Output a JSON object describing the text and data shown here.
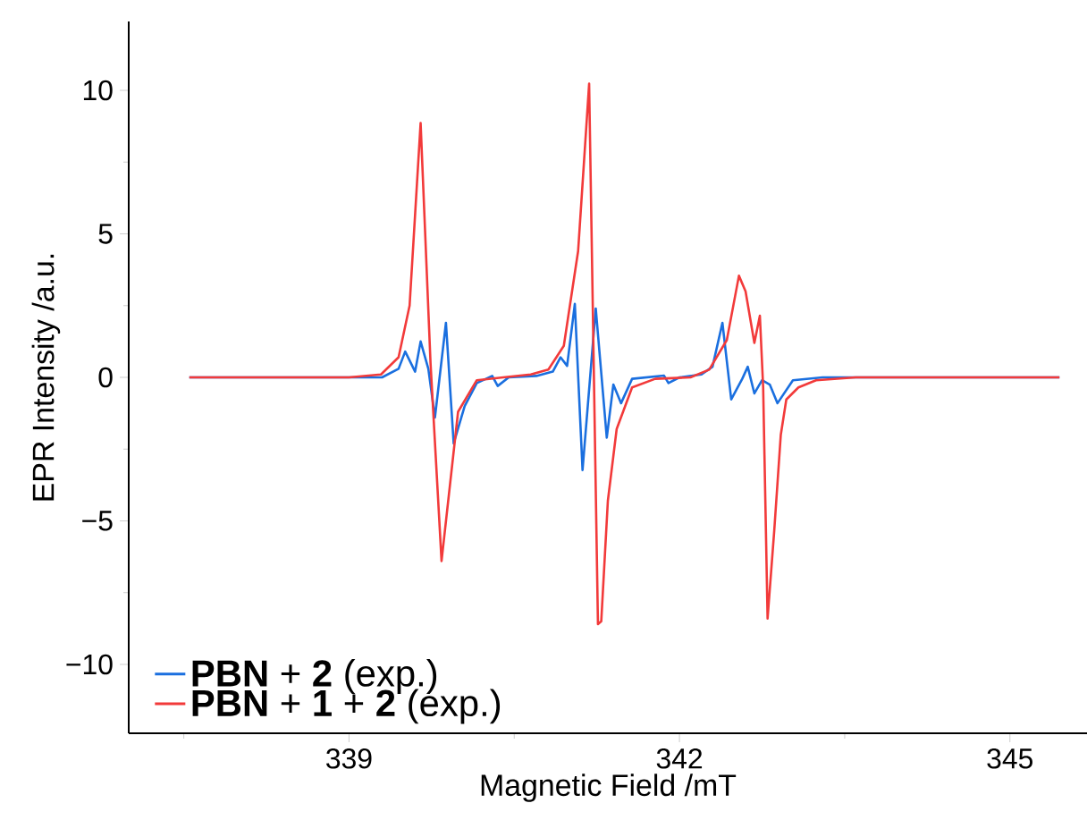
{
  "chart_data": {
    "type": "line",
    "xlabel": "Magnetic Field /mT",
    "ylabel": "EPR Intensity /a.u.",
    "xlim": [
      337.0,
      345.7
    ],
    "ylim": [
      -12.4,
      12.4
    ],
    "xticks": [
      {
        "value": 337.5,
        "label": null
      },
      339,
      {
        "value": 340.5,
        "label": null
      },
      342,
      {
        "value": 343.5,
        "label": null
      },
      345
    ],
    "yticks": [
      {
        "value": -10,
        "label": "−10"
      },
      {
        "value": -7.5,
        "label": null
      },
      {
        "value": -5,
        "label": "−5"
      },
      {
        "value": -2.5,
        "label": null
      },
      0,
      {
        "value": 2.5,
        "label": null
      },
      5,
      {
        "value": 7.5,
        "label": null
      },
      10
    ],
    "legend": "bottom left",
    "grid": false,
    "series": [
      {
        "name": "**PBN** + **2** (exp.)",
        "color": "#1a6fdf",
        "x": [
          337.55,
          338.5,
          339.3,
          339.45,
          339.51,
          339.6,
          339.65,
          339.72,
          339.78,
          339.88,
          339.95,
          340.05,
          340.16,
          340.3,
          340.35,
          340.45,
          340.7,
          340.85,
          340.92,
          340.98,
          341.05,
          341.12,
          341.24,
          341.34,
          341.4,
          341.47,
          341.57,
          341.86,
          341.9,
          342.0,
          342.2,
          342.3,
          342.39,
          342.47,
          342.57,
          342.62,
          342.68,
          342.75,
          342.82,
          342.89,
          343.03,
          343.3,
          344.5,
          345.45
        ],
        "values": [
          0,
          0,
          0,
          0.3,
          0.9,
          0.2,
          1.25,
          0.3,
          -1.4,
          1.9,
          -2.3,
          -1.0,
          -0.2,
          0.05,
          -0.3,
          0,
          0.05,
          0.2,
          0.7,
          0.4,
          2.56,
          -3.23,
          2.4,
          -2.1,
          -0.25,
          -0.9,
          -0.05,
          0.06,
          -0.2,
          0,
          0.1,
          0.37,
          1.9,
          -0.77,
          -0.05,
          0.37,
          -0.56,
          -0.1,
          -0.25,
          -0.9,
          -0.1,
          0,
          0,
          0
        ]
      },
      {
        "name": "**PBN** + **1** + **2** (exp.)",
        "color": "#f23a3a",
        "x": [
          337.55,
          338.5,
          339.0,
          339.29,
          339.45,
          339.55,
          339.65,
          339.74,
          339.84,
          339.99,
          340.16,
          340.4,
          340.65,
          340.81,
          340.95,
          341.08,
          341.18,
          341.26,
          341.29,
          341.35,
          341.43,
          341.57,
          341.78,
          342.1,
          342.27,
          342.43,
          342.54,
          342.6,
          342.68,
          342.73,
          342.76,
          342.8,
          342.86,
          342.92,
          342.97,
          343.08,
          343.24,
          343.6,
          344.5,
          345.45
        ],
        "values": [
          0,
          0,
          0,
          0.1,
          0.7,
          2.5,
          8.86,
          0.5,
          -6.4,
          -1.2,
          -0.1,
          0,
          0.1,
          0.27,
          1.1,
          4.4,
          10.23,
          -8.6,
          -8.5,
          -4.3,
          -1.8,
          -0.35,
          -0.05,
          0,
          0.27,
          1.3,
          3.54,
          3.0,
          1.2,
          2.15,
          -0.35,
          -8.4,
          -5.36,
          -2.0,
          -0.77,
          -0.35,
          -0.1,
          0,
          0,
          0
        ]
      }
    ]
  }
}
